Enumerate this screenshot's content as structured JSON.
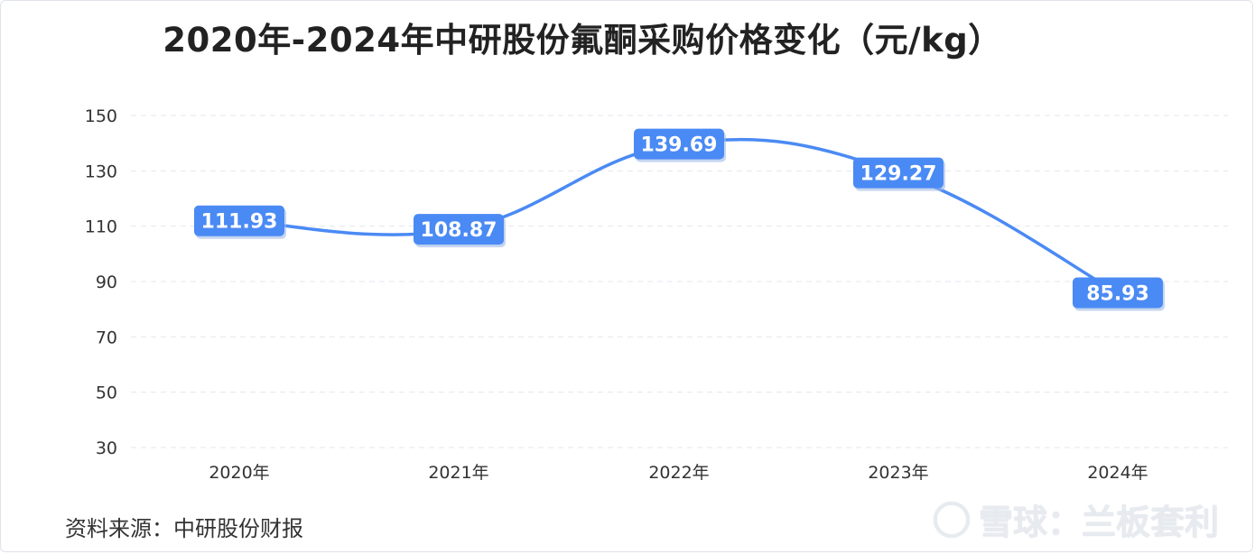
{
  "chart_data": {
    "type": "line",
    "title": "2020年-2024年中研股份氟酮采购价格变化（元/kg）",
    "categories": [
      "2020年",
      "2021年",
      "2022年",
      "2023年",
      "2024年"
    ],
    "series": [
      {
        "values": [
          111.93,
          108.87,
          139.69,
          129.27,
          85.93
        ]
      }
    ],
    "data_labels": [
      "111.93",
      "108.87",
      "139.69",
      "129.27",
      "85.93"
    ],
    "y_ticks": [
      30,
      50,
      70,
      90,
      110,
      130,
      150
    ],
    "ylim": [
      30,
      150
    ],
    "grid": true,
    "line_color": "#4a8af4",
    "label_bg_color": "#4a8af4"
  },
  "footer": {
    "source": "资料来源：中研股份财报",
    "watermark": "雪球：兰板套利"
  }
}
